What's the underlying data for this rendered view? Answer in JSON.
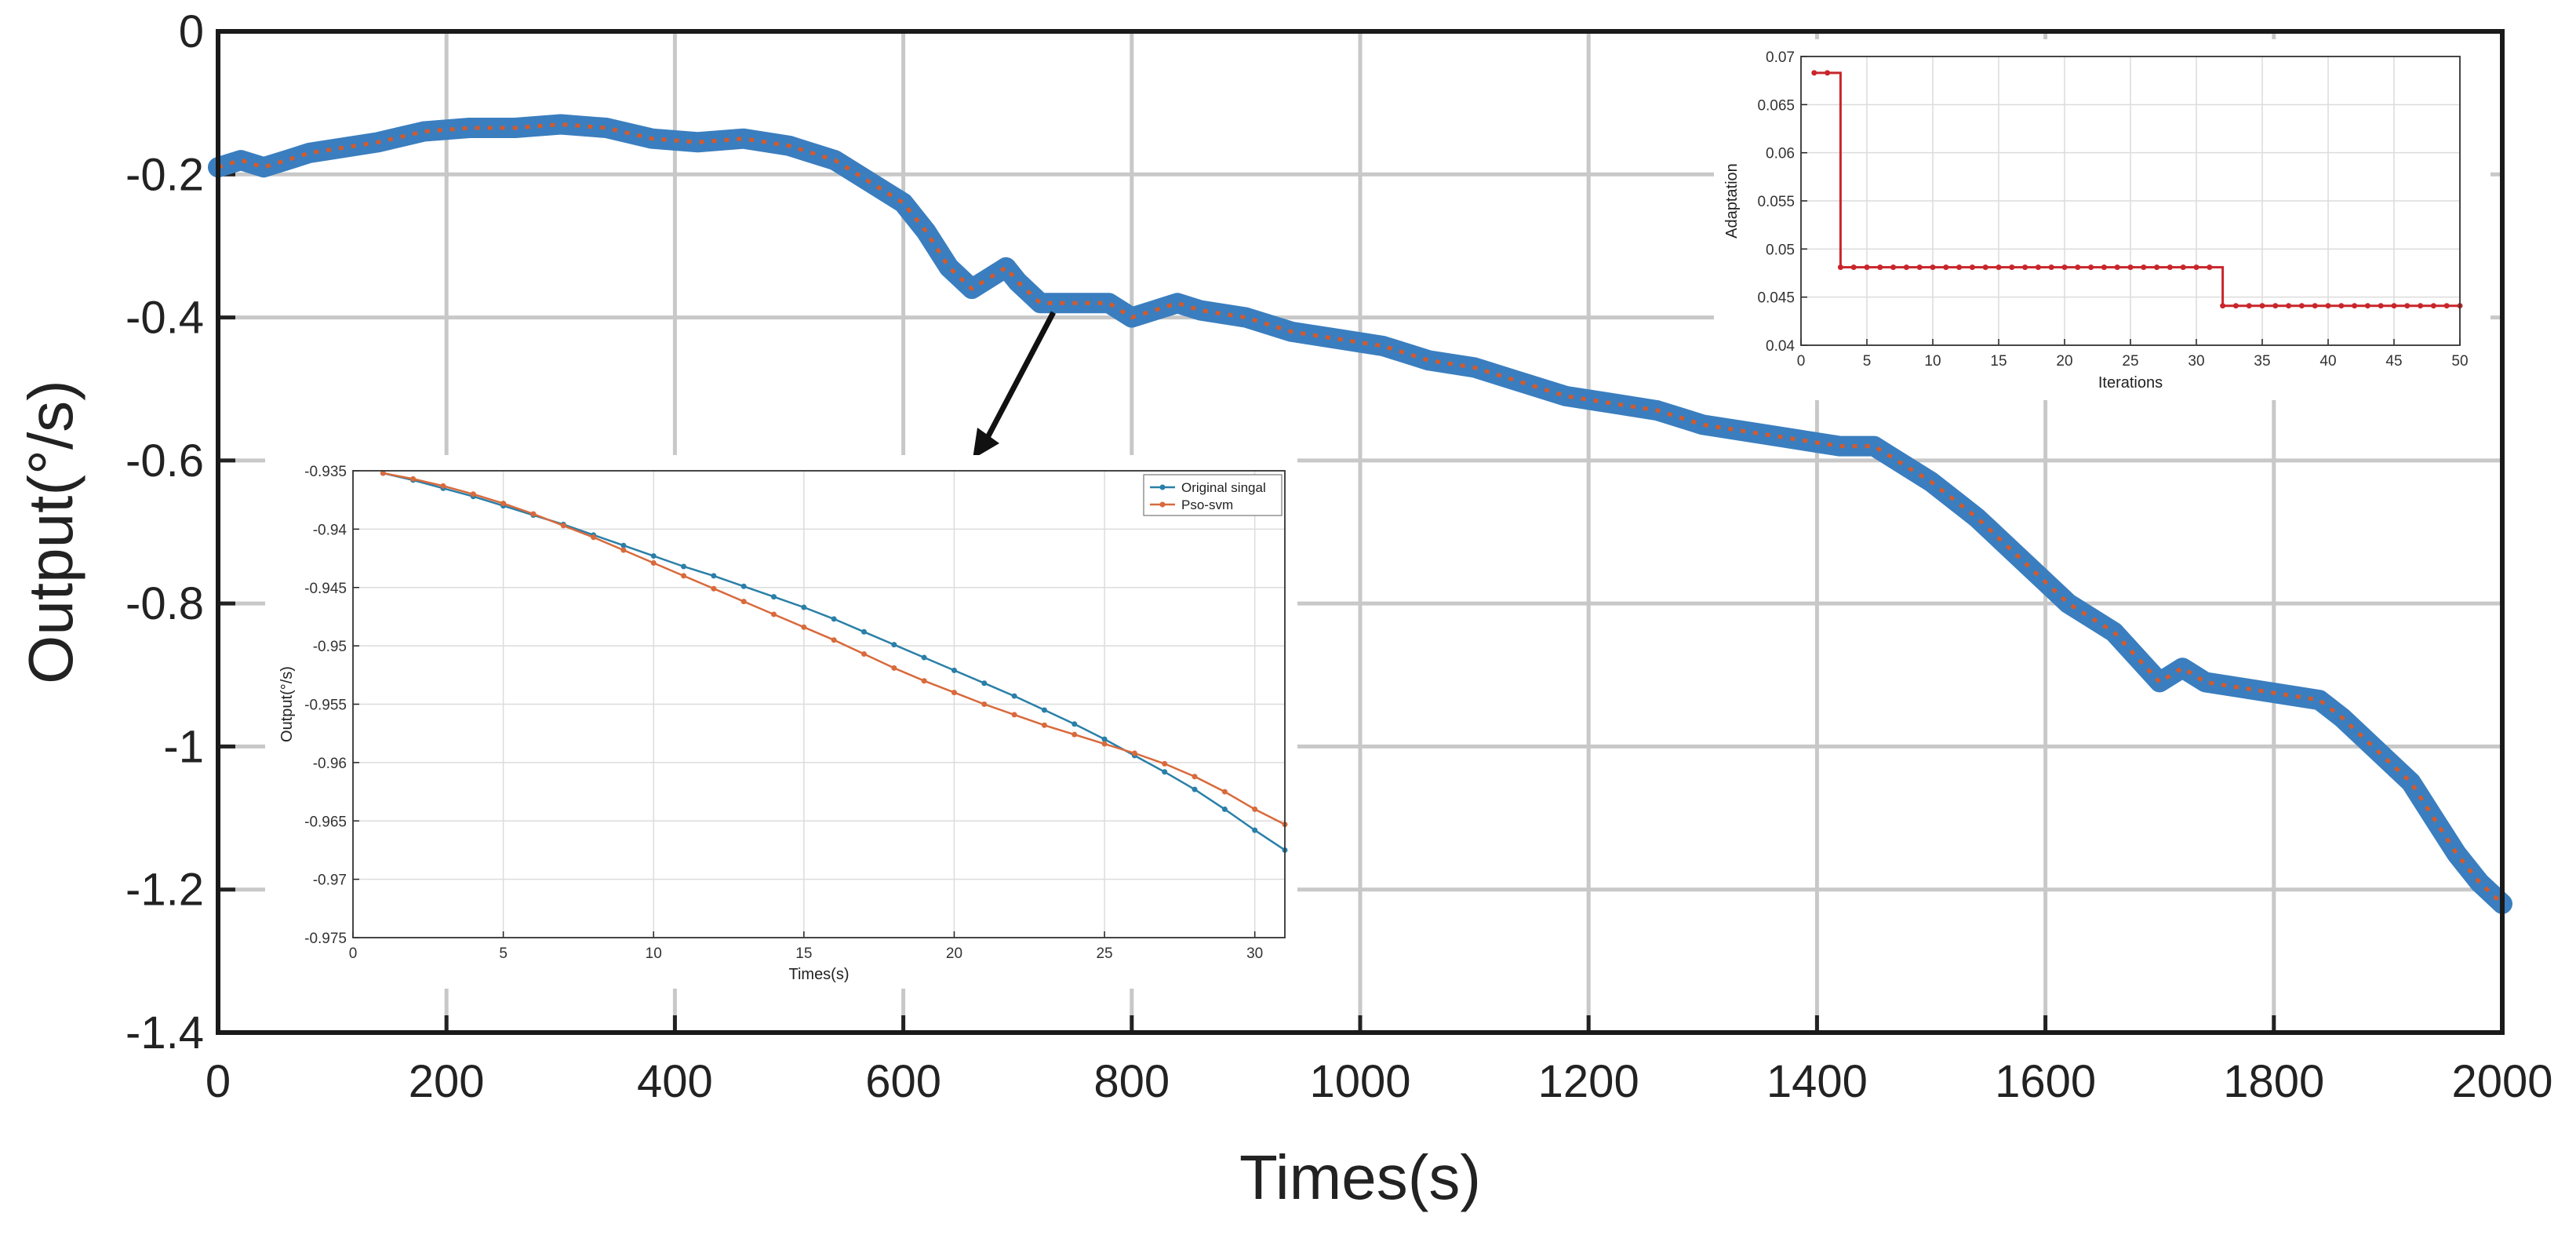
{
  "chart_data": [
    {
      "type": "line",
      "id": "main",
      "title": "",
      "xlabel": "Times(s)",
      "ylabel": "Output(°/s)",
      "xlim": [
        0,
        2000
      ],
      "ylim": [
        -1.4,
        0
      ],
      "xticks": [
        0,
        200,
        400,
        600,
        800,
        1000,
        1200,
        1400,
        1600,
        1800,
        2000
      ],
      "yticks": [
        0,
        -0.2,
        -0.4,
        -0.6,
        -0.8,
        -1,
        -1.2,
        -1.4
      ],
      "xtick_labels": [
        "0",
        "200",
        "400",
        "600",
        "800",
        "1000",
        "1200",
        "1400",
        "1600",
        "1800",
        "2000"
      ],
      "ytick_labels": [
        "0",
        "-0.2",
        "-0.4",
        "-0.6",
        "-0.8",
        "-1",
        "-1.2",
        "-1.4"
      ],
      "grid": true,
      "series": [
        {
          "name": "Original signal",
          "color": "#3a7ebf",
          "x": [
            0,
            20,
            40,
            60,
            80,
            100,
            140,
            180,
            220,
            260,
            300,
            340,
            380,
            420,
            460,
            500,
            540,
            580,
            600,
            620,
            640,
            660,
            680,
            690,
            700,
            720,
            760,
            780,
            800,
            820,
            840,
            860,
            900,
            940,
            980,
            1020,
            1060,
            1100,
            1140,
            1180,
            1220,
            1260,
            1300,
            1340,
            1380,
            1400,
            1420,
            1450,
            1470,
            1500,
            1540,
            1580,
            1620,
            1660,
            1700,
            1720,
            1740,
            1780,
            1820,
            1840,
            1860,
            1900,
            1920,
            1940,
            1960,
            1980,
            2000
          ],
          "y": [
            -0.19,
            -0.18,
            -0.19,
            -0.18,
            -0.17,
            -0.165,
            -0.155,
            -0.14,
            -0.135,
            -0.135,
            -0.13,
            -0.135,
            -0.15,
            -0.155,
            -0.15,
            -0.16,
            -0.18,
            -0.22,
            -0.24,
            -0.28,
            -0.33,
            -0.36,
            -0.34,
            -0.33,
            -0.35,
            -0.38,
            -0.38,
            -0.38,
            -0.4,
            -0.39,
            -0.38,
            -0.39,
            -0.4,
            -0.42,
            -0.43,
            -0.44,
            -0.46,
            -0.47,
            -0.49,
            -0.51,
            -0.52,
            -0.53,
            -0.55,
            -0.56,
            -0.57,
            -0.575,
            -0.58,
            -0.58,
            -0.6,
            -0.63,
            -0.68,
            -0.74,
            -0.8,
            -0.84,
            -0.91,
            -0.89,
            -0.91,
            -0.92,
            -0.93,
            -0.935,
            -0.96,
            -1.02,
            -1.05,
            -1.1,
            -1.15,
            -1.19,
            -1.22
          ]
        },
        {
          "name": "Pso-svm",
          "color": "#d45a2b",
          "x": [
            0,
            20,
            40,
            60,
            80,
            100,
            140,
            180,
            220,
            260,
            300,
            340,
            380,
            420,
            460,
            500,
            540,
            580,
            600,
            620,
            640,
            660,
            680,
            690,
            700,
            720,
            760,
            780,
            800,
            820,
            840,
            860,
            900,
            940,
            980,
            1020,
            1060,
            1100,
            1140,
            1180,
            1220,
            1260,
            1300,
            1340,
            1380,
            1400,
            1420,
            1450,
            1470,
            1500,
            1540,
            1580,
            1620,
            1660,
            1700,
            1720,
            1740,
            1780,
            1820,
            1840,
            1860,
            1900,
            1920,
            1940,
            1960,
            1980,
            2000
          ],
          "y": [
            -0.19,
            -0.18,
            -0.19,
            -0.18,
            -0.17,
            -0.165,
            -0.155,
            -0.14,
            -0.135,
            -0.135,
            -0.13,
            -0.135,
            -0.15,
            -0.155,
            -0.15,
            -0.16,
            -0.18,
            -0.22,
            -0.24,
            -0.28,
            -0.33,
            -0.36,
            -0.34,
            -0.33,
            -0.35,
            -0.38,
            -0.38,
            -0.38,
            -0.4,
            -0.39,
            -0.38,
            -0.39,
            -0.4,
            -0.42,
            -0.43,
            -0.44,
            -0.46,
            -0.47,
            -0.49,
            -0.51,
            -0.52,
            -0.53,
            -0.55,
            -0.56,
            -0.57,
            -0.575,
            -0.58,
            -0.58,
            -0.6,
            -0.63,
            -0.68,
            -0.74,
            -0.8,
            -0.84,
            -0.91,
            -0.89,
            -0.91,
            -0.92,
            -0.93,
            -0.935,
            -0.96,
            -1.02,
            -1.05,
            -1.1,
            -1.15,
            -1.19,
            -1.22
          ]
        }
      ]
    },
    {
      "type": "line",
      "id": "inset_zoom",
      "title": "",
      "xlabel": "Times(s)",
      "ylabel": "Output(°/s)",
      "xlim": [
        0,
        31
      ],
      "ylim": [
        -0.975,
        -0.935
      ],
      "xticks": [
        0,
        5,
        10,
        15,
        20,
        25,
        30
      ],
      "yticks": [
        -0.935,
        -0.94,
        -0.945,
        -0.95,
        -0.955,
        -0.96,
        -0.965,
        -0.97,
        -0.975
      ],
      "xtick_labels": [
        "0",
        "5",
        "10",
        "15",
        "20",
        "25",
        "30"
      ],
      "ytick_labels": [
        "-0.935",
        "-0.94",
        "-0.945",
        "-0.95",
        "-0.955",
        "-0.96",
        "-0.965",
        "-0.97",
        "-0.975"
      ],
      "grid": true,
      "legend": "top-right",
      "series": [
        {
          "name": "Original singal",
          "color": "#2a7fa8",
          "marker": "dot",
          "x": [
            1,
            2,
            3,
            4,
            5,
            6,
            7,
            8,
            9,
            10,
            11,
            12,
            13,
            14,
            15,
            16,
            17,
            18,
            19,
            20,
            21,
            22,
            23,
            24,
            25,
            26,
            27,
            28,
            29,
            30,
            31
          ],
          "y": [
            -0.9352,
            -0.9358,
            -0.9365,
            -0.9372,
            -0.938,
            -0.9388,
            -0.9396,
            -0.9405,
            -0.9414,
            -0.9423,
            -0.9432,
            -0.944,
            -0.9449,
            -0.9458,
            -0.9467,
            -0.9477,
            -0.9488,
            -0.9499,
            -0.951,
            -0.9521,
            -0.9532,
            -0.9543,
            -0.9555,
            -0.9567,
            -0.958,
            -0.9594,
            -0.9608,
            -0.9623,
            -0.964,
            -0.9658,
            -0.9675
          ]
        },
        {
          "name": "Pso-svm",
          "color": "#d86a3c",
          "marker": "dot",
          "x": [
            1,
            2,
            3,
            4,
            5,
            6,
            7,
            8,
            9,
            10,
            11,
            12,
            13,
            14,
            15,
            16,
            17,
            18,
            19,
            20,
            21,
            22,
            23,
            24,
            25,
            26,
            27,
            28,
            29,
            30,
            31
          ],
          "y": [
            -0.9352,
            -0.9357,
            -0.9363,
            -0.937,
            -0.9378,
            -0.9387,
            -0.9397,
            -0.9407,
            -0.9418,
            -0.9429,
            -0.944,
            -0.9451,
            -0.9462,
            -0.9473,
            -0.9484,
            -0.9495,
            -0.9507,
            -0.9519,
            -0.953,
            -0.954,
            -0.955,
            -0.9559,
            -0.9568,
            -0.9576,
            -0.9584,
            -0.9592,
            -0.9601,
            -0.9612,
            -0.9625,
            -0.964,
            -0.9653
          ]
        }
      ]
    },
    {
      "type": "line",
      "id": "inset_adaptation",
      "title": "",
      "xlabel": "Iterations",
      "ylabel": "Adaptation",
      "xlim": [
        0,
        50
      ],
      "ylim": [
        0.04,
        0.07
      ],
      "xticks": [
        0,
        5,
        10,
        15,
        20,
        25,
        30,
        35,
        40,
        45,
        50
      ],
      "yticks": [
        0.04,
        0.045,
        0.05,
        0.055,
        0.06,
        0.065,
        0.07
      ],
      "xtick_labels": [
        "0",
        "5",
        "10",
        "15",
        "20",
        "25",
        "30",
        "35",
        "40",
        "45",
        "50"
      ],
      "ytick_labels": [
        "0.04",
        "0.045",
        "0.05",
        "0.055",
        "0.06",
        "0.065",
        "0.07"
      ],
      "grid": true,
      "series": [
        {
          "name": "Adaptation",
          "color": "#c8262b",
          "marker": "dot",
          "x": [
            1,
            2,
            3,
            4,
            5,
            6,
            7,
            8,
            9,
            10,
            11,
            12,
            13,
            14,
            15,
            16,
            17,
            18,
            19,
            20,
            21,
            22,
            23,
            24,
            25,
            26,
            27,
            28,
            29,
            30,
            31,
            32,
            33,
            34,
            35,
            36,
            37,
            38,
            39,
            40,
            41,
            42,
            43,
            44,
            45,
            46,
            47,
            48,
            49,
            50
          ],
          "y": [
            0.0683,
            0.0683,
            0.0481,
            0.0481,
            0.0481,
            0.0481,
            0.0481,
            0.0481,
            0.0481,
            0.0481,
            0.0481,
            0.0481,
            0.0481,
            0.0481,
            0.0481,
            0.0481,
            0.0481,
            0.0481,
            0.0481,
            0.0481,
            0.0481,
            0.0481,
            0.0481,
            0.0481,
            0.0481,
            0.0481,
            0.0481,
            0.0481,
            0.0481,
            0.0481,
            0.0481,
            0.0441,
            0.0441,
            0.0441,
            0.0441,
            0.0441,
            0.0441,
            0.0441,
            0.0441,
            0.0441,
            0.0441,
            0.0441,
            0.0441,
            0.0441,
            0.0441,
            0.0441,
            0.0441,
            0.0441,
            0.0441,
            0.0441
          ]
        }
      ]
    }
  ]
}
